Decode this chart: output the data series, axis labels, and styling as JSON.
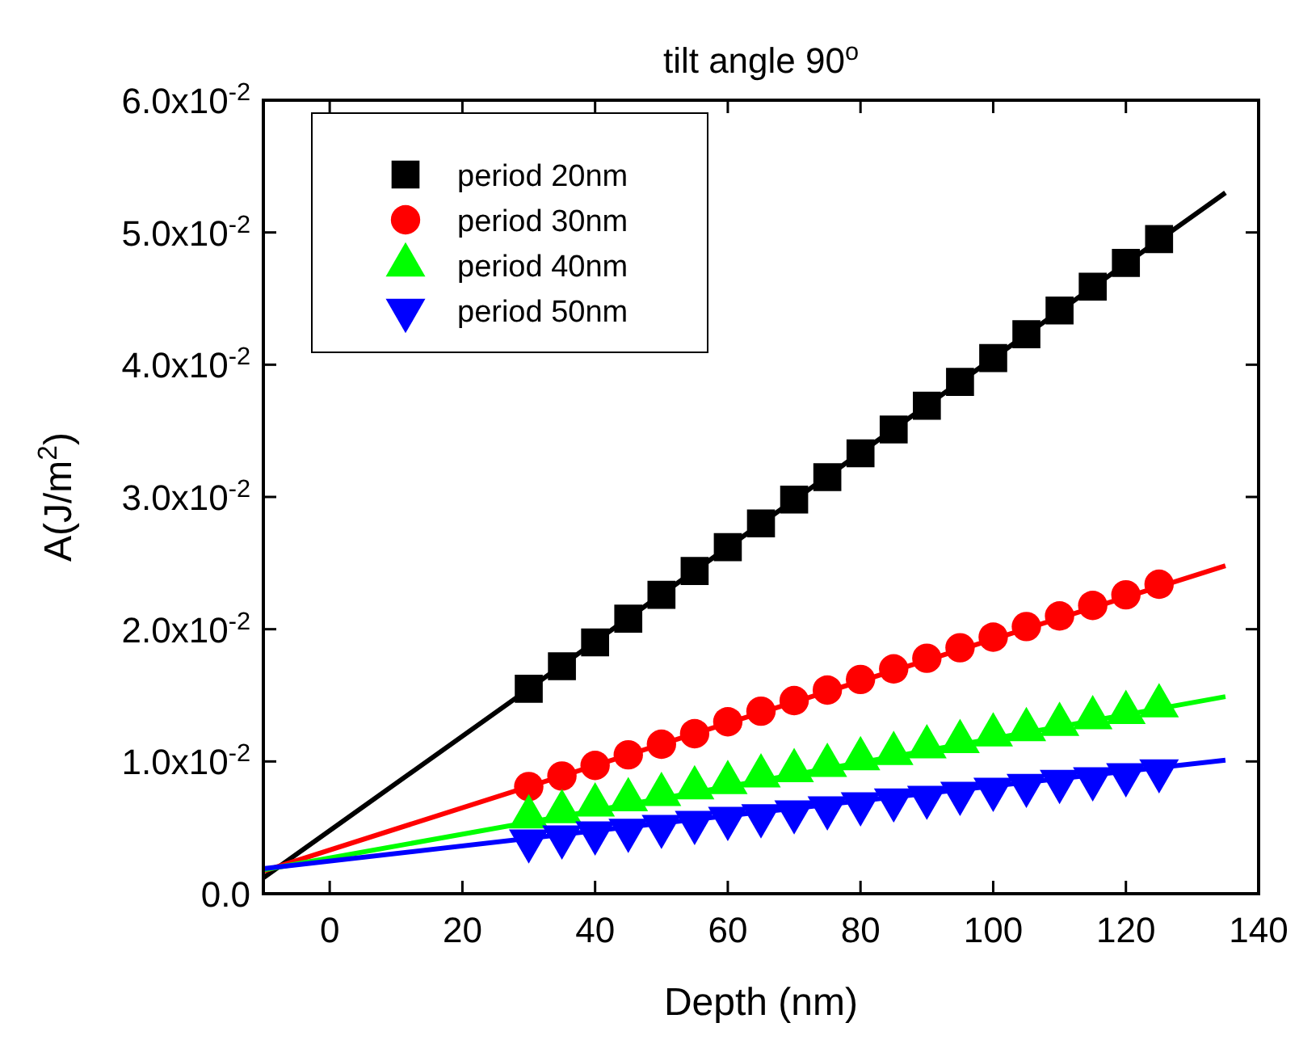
{
  "chart_data": {
    "type": "scatter",
    "title": "tilt angle 90$^{o}$",
    "xlabel": "Depth (nm)",
    "ylabel": "A(J/m$^{2}$)",
    "xlim": [
      -10,
      140
    ],
    "xticks": [
      0,
      20,
      40,
      60,
      80,
      100,
      120,
      140
    ],
    "ylim": [
      0,
      0.06
    ],
    "yticks": [
      {
        "value": 0,
        "label": "0.0"
      },
      {
        "value": 0.01,
        "label": "1.0x10$^{-2}$"
      },
      {
        "value": 0.02,
        "label": "2.0x10$^{-2}$"
      },
      {
        "value": 0.03,
        "label": "3.0x10$^{-2}$"
      },
      {
        "value": 0.04,
        "label": "4.0x10$^{-2}$"
      },
      {
        "value": 0.05,
        "label": "5.0x10$^{-2}$"
      },
      {
        "value": 0.06,
        "label": "6.0x10$^{-2}$"
      }
    ],
    "grid": false,
    "legend": "top left",
    "x": [
      30,
      35,
      40,
      45,
      50,
      55,
      60,
      65,
      70,
      75,
      80,
      85,
      90,
      95,
      100,
      105,
      110,
      115,
      120,
      125
    ],
    "series": [
      {
        "name": "period 20nm",
        "color": "#000000",
        "marker": "square",
        "values": [
          0.0155,
          0.0172,
          0.019,
          0.0208,
          0.0226,
          0.0244,
          0.0262,
          0.028,
          0.0298,
          0.0315,
          0.0333,
          0.0351,
          0.0369,
          0.0387,
          0.0405,
          0.0423,
          0.0441,
          0.0459,
          0.0477,
          0.0495
        ]
      },
      {
        "name": "period 30nm",
        "color": "#ff0000",
        "marker": "circle",
        "values": [
          0.0081,
          0.0089,
          0.0097,
          0.0105,
          0.0113,
          0.0121,
          0.013,
          0.0138,
          0.0146,
          0.0154,
          0.0162,
          0.017,
          0.0178,
          0.0186,
          0.0194,
          0.0202,
          0.021,
          0.0218,
          0.0226,
          0.0234
        ]
      },
      {
        "name": "period 40nm",
        "color": "#00ff00",
        "marker": "triangle",
        "values": [
          0.0058,
          0.0062,
          0.0067,
          0.0071,
          0.0075,
          0.008,
          0.0084,
          0.0089,
          0.0093,
          0.0097,
          0.0102,
          0.0106,
          0.0111,
          0.0115,
          0.012,
          0.0124,
          0.0128,
          0.0133,
          0.0137,
          0.0142
        ]
      },
      {
        "name": "period 50nm",
        "color": "#0000ff",
        "marker": "triangle-down",
        "values": [
          0.004,
          0.0043,
          0.0046,
          0.0048,
          0.0051,
          0.0054,
          0.0057,
          0.0059,
          0.0062,
          0.0065,
          0.0068,
          0.0071,
          0.0073,
          0.0076,
          0.0079,
          0.0082,
          0.0085,
          0.0087,
          0.009,
          0.0093
        ]
      },
      {
        "type": "line",
        "color": "#000000",
        "marker": "none",
        "x": [
          -10,
          60,
          135
        ],
        "values": [
          0.0012,
          0.0262,
          0.053
        ]
      },
      {
        "type": "line",
        "color": "#ff0000",
        "marker": "none",
        "x": [
          -10,
          60,
          135
        ],
        "values": [
          0.0017,
          0.0129,
          0.0248
        ]
      },
      {
        "type": "line",
        "color": "#00ff00",
        "marker": "none",
        "x": [
          -10,
          60,
          135
        ],
        "values": [
          0.0018,
          0.0081,
          0.0149
        ]
      },
      {
        "type": "line",
        "color": "#0000ff",
        "marker": "none",
        "x": [
          -10,
          60,
          135
        ],
        "values": [
          0.0019,
          0.0059,
          0.0101
        ]
      }
    ]
  }
}
